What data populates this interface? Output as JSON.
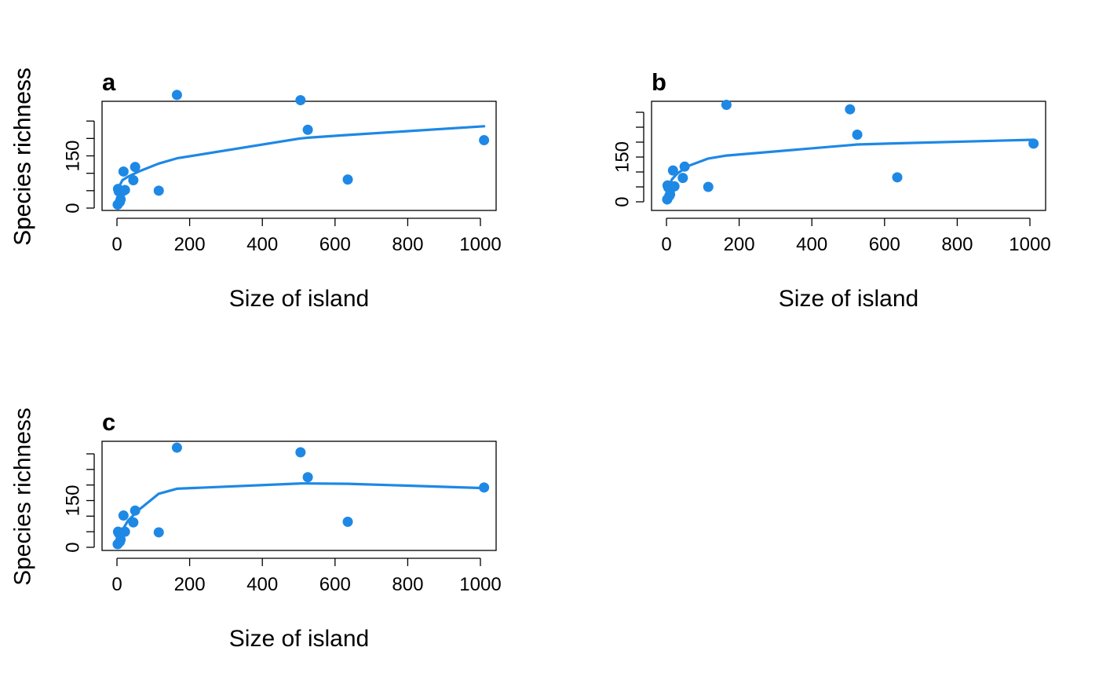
{
  "style": {
    "point_color": "#1e88e5",
    "line_color": "#1e88e5",
    "axis_color": "#000000"
  },
  "chart_data": [
    {
      "panel": "a",
      "type": "scatter",
      "xlabel": "Size of island",
      "ylabel": "Species richness",
      "xlim": [
        0,
        1000
      ],
      "ylim": [
        0,
        300
      ],
      "xticks": [
        0,
        200,
        400,
        600,
        800,
        1000
      ],
      "yticks": [
        0,
        50,
        100,
        150,
        200,
        250
      ],
      "ytick_labels": [
        "0",
        "",
        "",
        "150",
        "",
        ""
      ],
      "points": [
        {
          "x": 2,
          "y": 10
        },
        {
          "x": 3,
          "y": 55
        },
        {
          "x": 5,
          "y": 48
        },
        {
          "x": 8,
          "y": 18
        },
        {
          "x": 10,
          "y": 25
        },
        {
          "x": 15,
          "y": 48
        },
        {
          "x": 18,
          "y": 105
        },
        {
          "x": 22,
          "y": 52
        },
        {
          "x": 45,
          "y": 80
        },
        {
          "x": 50,
          "y": 118
        },
        {
          "x": 115,
          "y": 50
        },
        {
          "x": 165,
          "y": 325
        },
        {
          "x": 505,
          "y": 310
        },
        {
          "x": 525,
          "y": 225
        },
        {
          "x": 635,
          "y": 82
        },
        {
          "x": 1010,
          "y": 195
        }
      ],
      "fit_line": [
        {
          "x": 0,
          "y": 40
        },
        {
          "x": 5,
          "y": 60
        },
        {
          "x": 15,
          "y": 80
        },
        {
          "x": 30,
          "y": 90
        },
        {
          "x": 60,
          "y": 105
        },
        {
          "x": 115,
          "y": 128
        },
        {
          "x": 165,
          "y": 143
        },
        {
          "x": 505,
          "y": 200
        },
        {
          "x": 525,
          "y": 202
        },
        {
          "x": 635,
          "y": 210
        },
        {
          "x": 1010,
          "y": 235
        }
      ]
    },
    {
      "panel": "b",
      "type": "scatter",
      "xlabel": "Size of island",
      "ylabel": "Species richness",
      "xlim": [
        0,
        1000
      ],
      "ylim": [
        0,
        300
      ],
      "xticks": [
        0,
        200,
        400,
        600,
        800,
        1000
      ],
      "yticks": [
        0,
        50,
        100,
        150,
        200,
        250,
        300
      ],
      "ytick_labels": [
        "0",
        "",
        "",
        "150",
        "",
        "",
        ""
      ],
      "points": [
        {
          "x": 2,
          "y": 8
        },
        {
          "x": 3,
          "y": 55
        },
        {
          "x": 5,
          "y": 48
        },
        {
          "x": 8,
          "y": 20
        },
        {
          "x": 10,
          "y": 25
        },
        {
          "x": 15,
          "y": 48
        },
        {
          "x": 18,
          "y": 105
        },
        {
          "x": 22,
          "y": 52
        },
        {
          "x": 45,
          "y": 80
        },
        {
          "x": 50,
          "y": 118
        },
        {
          "x": 115,
          "y": 50
        },
        {
          "x": 165,
          "y": 325
        },
        {
          "x": 505,
          "y": 310
        },
        {
          "x": 525,
          "y": 225
        },
        {
          "x": 635,
          "y": 82
        },
        {
          "x": 1010,
          "y": 195
        }
      ],
      "fit_line": [
        {
          "x": 0,
          "y": -5
        },
        {
          "x": 5,
          "y": 40
        },
        {
          "x": 15,
          "y": 75
        },
        {
          "x": 30,
          "y": 95
        },
        {
          "x": 60,
          "y": 120
        },
        {
          "x": 115,
          "y": 145
        },
        {
          "x": 165,
          "y": 155
        },
        {
          "x": 505,
          "y": 190
        },
        {
          "x": 525,
          "y": 192
        },
        {
          "x": 635,
          "y": 196
        },
        {
          "x": 1010,
          "y": 208
        }
      ]
    },
    {
      "panel": "c",
      "type": "scatter",
      "xlabel": "Size of island",
      "ylabel": "Species richness",
      "xlim": [
        0,
        1000
      ],
      "ylim": [
        0,
        300
      ],
      "xticks": [
        0,
        200,
        400,
        600,
        800,
        1000
      ],
      "yticks": [
        0,
        50,
        100,
        150,
        200,
        250,
        300
      ],
      "ytick_labels": [
        "0",
        "",
        "",
        "150",
        "",
        "",
        ""
      ],
      "points": [
        {
          "x": 2,
          "y": 10
        },
        {
          "x": 3,
          "y": 50
        },
        {
          "x": 5,
          "y": 45
        },
        {
          "x": 8,
          "y": 18
        },
        {
          "x": 10,
          "y": 25
        },
        {
          "x": 15,
          "y": 48
        },
        {
          "x": 18,
          "y": 102
        },
        {
          "x": 22,
          "y": 50
        },
        {
          "x": 45,
          "y": 80
        },
        {
          "x": 50,
          "y": 118
        },
        {
          "x": 115,
          "y": 48
        },
        {
          "x": 165,
          "y": 320
        },
        {
          "x": 505,
          "y": 305
        },
        {
          "x": 525,
          "y": 225
        },
        {
          "x": 635,
          "y": 82
        },
        {
          "x": 1010,
          "y": 192
        }
      ],
      "fit_line": [
        {
          "x": 0,
          "y": 15
        },
        {
          "x": 10,
          "y": 45
        },
        {
          "x": 30,
          "y": 85
        },
        {
          "x": 60,
          "y": 120
        },
        {
          "x": 115,
          "y": 172
        },
        {
          "x": 165,
          "y": 188
        },
        {
          "x": 505,
          "y": 205
        },
        {
          "x": 525,
          "y": 205
        },
        {
          "x": 635,
          "y": 204
        },
        {
          "x": 1010,
          "y": 190
        }
      ]
    }
  ]
}
